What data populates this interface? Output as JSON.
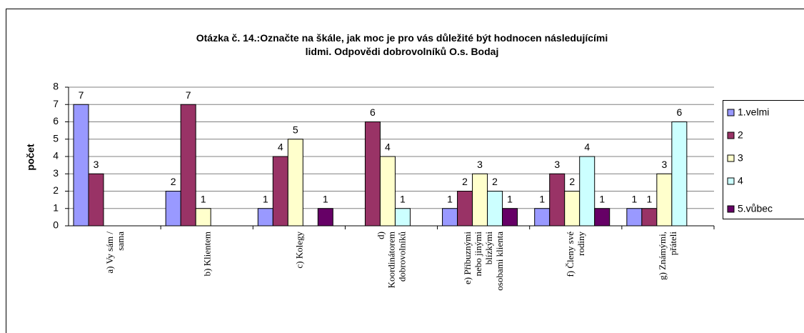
{
  "chart_data": {
    "type": "bar",
    "title": "Otázka č. 14.:Označte na škále, jak moc je pro vás důležité být hodnocen následujícími\nlidmi. Odpovědi dobrovolníků O.s. Bodaj",
    "y_label": "počet",
    "categories": [
      "a) Vy sám /\nsama",
      "b) Klientem",
      "c) Kolegy",
      "d)\nKoordinátorem\ndobrovolníků",
      "e) Příbuznými\nnebo jinými\nblízkými\nosobami klienta",
      "f) Členy své\nrodiny",
      "g) Známými,\npřáteli"
    ],
    "series": [
      {
        "name": "1.velmi",
        "color": "#9999ff",
        "values": [
          7,
          2,
          1,
          null,
          1,
          1,
          1
        ]
      },
      {
        "name": "2",
        "color": "#993366",
        "values": [
          3,
          7,
          4,
          6,
          2,
          3,
          1
        ]
      },
      {
        "name": "3",
        "color": "#ffffcc",
        "values": [
          null,
          1,
          5,
          4,
          3,
          2,
          3
        ]
      },
      {
        "name": "4",
        "color": "#ccffff",
        "values": [
          null,
          null,
          null,
          1,
          2,
          4,
          6
        ]
      },
      {
        "name": "5.vůbec",
        "color": "#660066",
        "values": [
          null,
          null,
          1,
          null,
          1,
          1,
          null
        ]
      }
    ],
    "ylim": [
      0,
      8
    ],
    "yticks": [
      0,
      1,
      2,
      3,
      4,
      5,
      6,
      7,
      8
    ],
    "grid": true,
    "legend": "right"
  }
}
